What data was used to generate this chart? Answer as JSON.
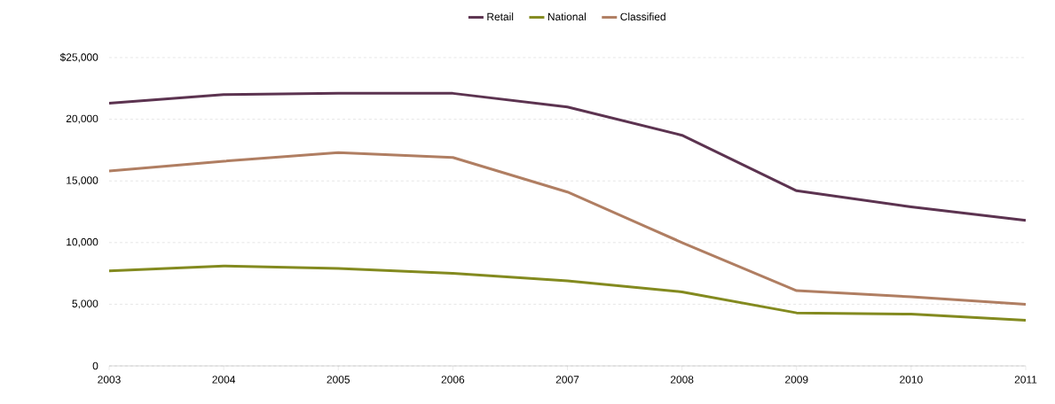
{
  "chart_data": {
    "type": "line",
    "categories": [
      "2003",
      "2004",
      "2005",
      "2006",
      "2007",
      "2008",
      "2009",
      "2010",
      "2011"
    ],
    "series": [
      {
        "name": "Retail",
        "color": "#5c3350",
        "values": [
          21300,
          22000,
          22100,
          22100,
          21000,
          18700,
          14200,
          12900,
          11800
        ]
      },
      {
        "name": "National",
        "color": "#838a1f",
        "values": [
          7700,
          8100,
          7900,
          7500,
          6900,
          6000,
          4300,
          4200,
          3700
        ]
      },
      {
        "name": "Classified",
        "color": "#b07e62",
        "values": [
          15800,
          16600,
          17300,
          16900,
          14100,
          10000,
          6100,
          5600,
          5000
        ]
      }
    ],
    "ylim": [
      0,
      25000
    ],
    "yticks": [
      0,
      {
        "value": 5000,
        "label": "5,000"
      },
      {
        "value": 10000,
        "label": "10,000"
      },
      {
        "value": 15000,
        "label": "15,000"
      },
      {
        "value": 20000,
        "label": "20,000"
      },
      {
        "value": 25000,
        "label": "$25,000"
      }
    ],
    "grid": "y",
    "legend": "top",
    "marker": "none",
    "line_style": "solid"
  }
}
